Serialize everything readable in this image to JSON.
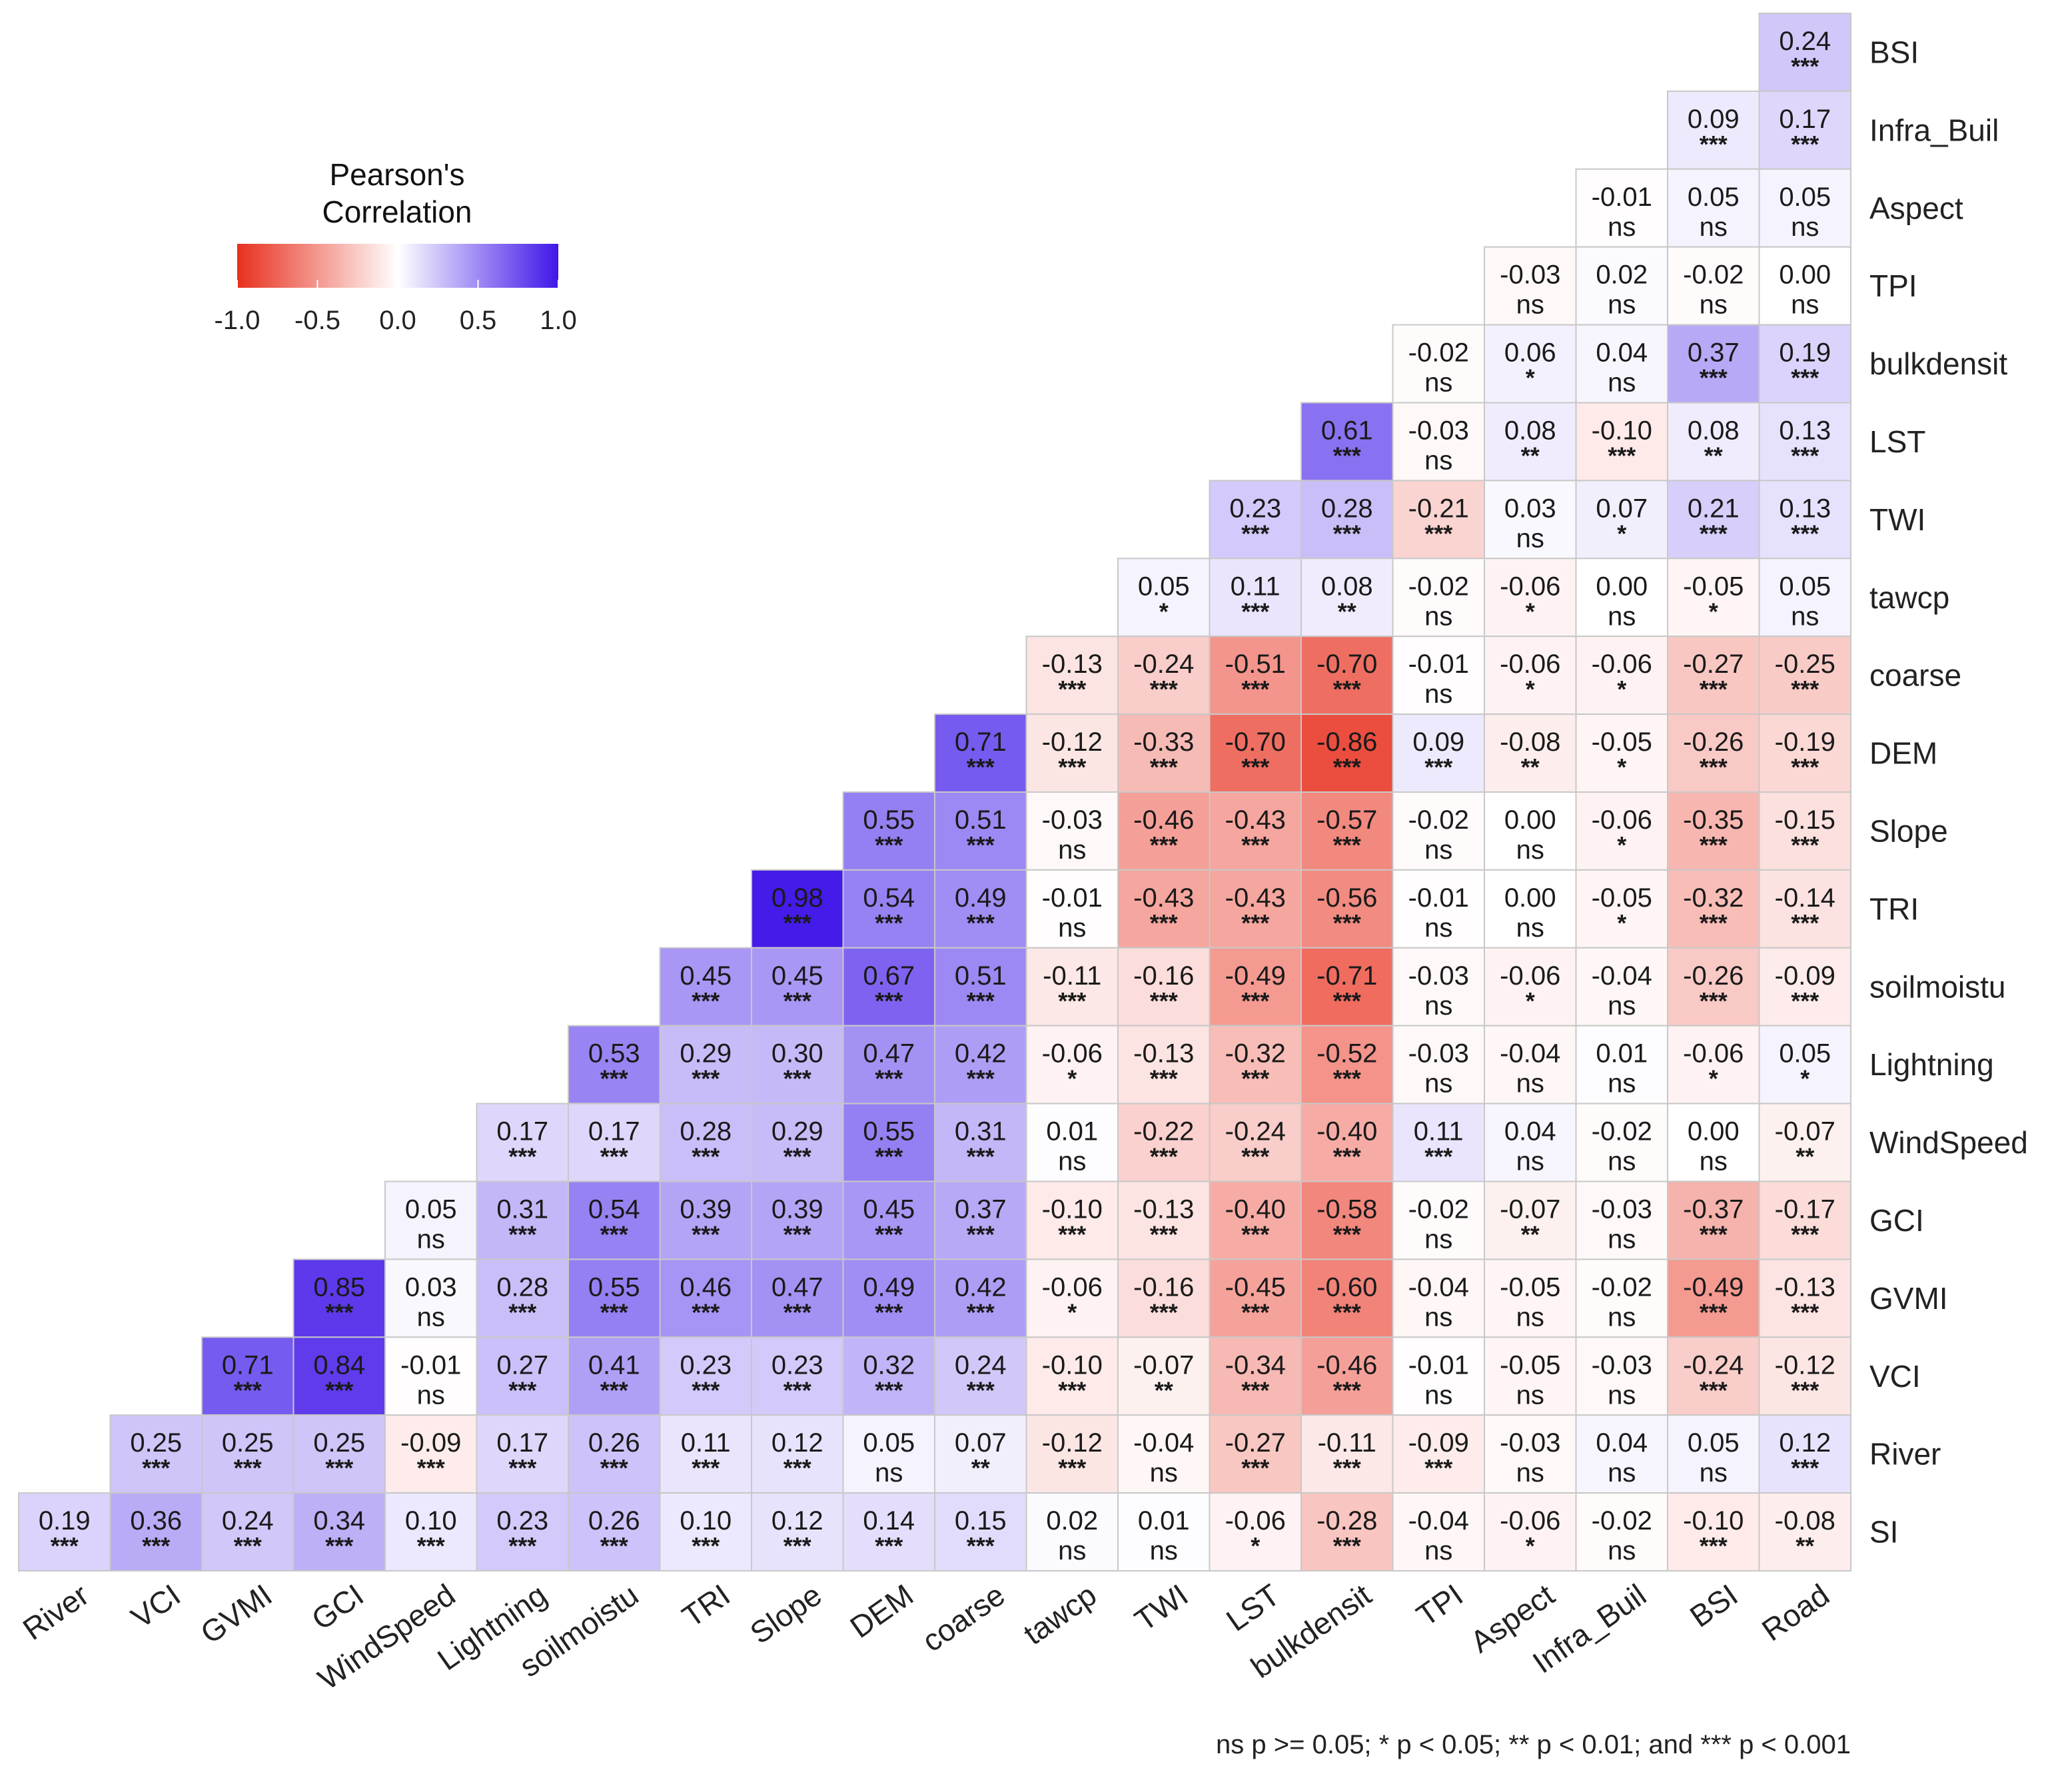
{
  "chart_data": {
    "type": "heatmap",
    "title": "",
    "legend": {
      "title_line1": "Pearson's",
      "title_line2": "Correlation",
      "ticks": [
        "-1.0",
        "-0.5",
        "0.0",
        "0.5",
        "1.0"
      ],
      "colors": {
        "low": "#e8301e",
        "mid": "#ffffff",
        "high": "#4016e8"
      },
      "placement": "top-left"
    },
    "footnote": "ns p >= 0.05; * p < 0.05; ** p < 0.01; and *** p < 0.001",
    "x_labels": [
      "River",
      "VCI",
      "GVMI",
      "GCI",
      "WindSpeed",
      "Lightning",
      "soilmoistu",
      "TRI",
      "Slope",
      "DEM",
      "coarse",
      "tawcp",
      "TWI",
      "LST",
      "bulkdensit",
      "TPI",
      "Aspect",
      "Infra_Buil",
      "BSI",
      "Road"
    ],
    "y_labels": [
      "BSI",
      "Infra_Buil",
      "Aspect",
      "TPI",
      "bulkdensit",
      "LST",
      "TWI",
      "tawcp",
      "coarse",
      "DEM",
      "Slope",
      "TRI",
      "soilmoistu",
      "Lightning",
      "WindSpeed",
      "GCI",
      "GVMI",
      "VCI",
      "River",
      "SI"
    ],
    "rows": [
      {
        "label": "BSI",
        "values": [
          "0.24"
        ],
        "sig": [
          "***"
        ]
      },
      {
        "label": "Infra_Buil",
        "values": [
          "0.09",
          "0.17"
        ],
        "sig": [
          "***",
          "***"
        ]
      },
      {
        "label": "Aspect",
        "values": [
          "-0.01",
          "0.05",
          "0.05"
        ],
        "sig": [
          "ns",
          "ns",
          "ns"
        ]
      },
      {
        "label": "TPI",
        "values": [
          "-0.03",
          "0.02",
          "-0.02",
          "0.00"
        ],
        "sig": [
          "ns",
          "ns",
          "ns",
          "ns"
        ]
      },
      {
        "label": "bulkdensit",
        "values": [
          "-0.02",
          "0.06",
          "0.04",
          "0.37",
          "0.19"
        ],
        "sig": [
          "ns",
          "*",
          "ns",
          "***",
          "***"
        ]
      },
      {
        "label": "LST",
        "values": [
          "0.61",
          "-0.03",
          "0.08",
          "-0.10",
          "0.08",
          "0.13"
        ],
        "sig": [
          "***",
          "ns",
          "**",
          "***",
          "**",
          "***"
        ]
      },
      {
        "label": "TWI",
        "values": [
          "0.23",
          "0.28",
          "-0.21",
          "0.03",
          "0.07",
          "0.21",
          "0.13"
        ],
        "sig": [
          "***",
          "***",
          "***",
          "ns",
          "*",
          "***",
          "***"
        ]
      },
      {
        "label": "tawcp",
        "values": [
          "0.05",
          "0.11",
          "0.08",
          "-0.02",
          "-0.06",
          "0.00",
          "-0.05",
          "0.05"
        ],
        "sig": [
          "*",
          "***",
          "**",
          "ns",
          "*",
          "ns",
          "*",
          "ns"
        ]
      },
      {
        "label": "coarse",
        "values": [
          "-0.13",
          "-0.24",
          "-0.51",
          "-0.70",
          "-0.01",
          "-0.06",
          "-0.06",
          "-0.27",
          "-0.25"
        ],
        "sig": [
          "***",
          "***",
          "***",
          "***",
          "ns",
          "*",
          "*",
          "***",
          "***"
        ]
      },
      {
        "label": "DEM",
        "values": [
          "0.71",
          "-0.12",
          "-0.33",
          "-0.70",
          "-0.86",
          "0.09",
          "-0.08",
          "-0.05",
          "-0.26",
          "-0.19"
        ],
        "sig": [
          "***",
          "***",
          "***",
          "***",
          "***",
          "***",
          "**",
          "*",
          "***",
          "***"
        ]
      },
      {
        "label": "Slope",
        "values": [
          "0.55",
          "0.51",
          "-0.03",
          "-0.46",
          "-0.43",
          "-0.57",
          "-0.02",
          "0.00",
          "-0.06",
          "-0.35",
          "-0.15"
        ],
        "sig": [
          "***",
          "***",
          "ns",
          "***",
          "***",
          "***",
          "ns",
          "ns",
          "*",
          "***",
          "***"
        ]
      },
      {
        "label": "TRI",
        "values": [
          "0.98",
          "0.54",
          "0.49",
          "-0.01",
          "-0.43",
          "-0.43",
          "-0.56",
          "-0.01",
          "0.00",
          "-0.05",
          "-0.32",
          "-0.14"
        ],
        "sig": [
          "***",
          "***",
          "***",
          "ns",
          "***",
          "***",
          "***",
          "ns",
          "ns",
          "*",
          "***",
          "***"
        ]
      },
      {
        "label": "soilmoistu",
        "values": [
          "0.45",
          "0.45",
          "0.67",
          "0.51",
          "-0.11",
          "-0.16",
          "-0.49",
          "-0.71",
          "-0.03",
          "-0.06",
          "-0.04",
          "-0.26",
          "-0.09"
        ],
        "sig": [
          "***",
          "***",
          "***",
          "***",
          "***",
          "***",
          "***",
          "***",
          "ns",
          "*",
          "ns",
          "***",
          "***"
        ]
      },
      {
        "label": "Lightning",
        "values": [
          "0.53",
          "0.29",
          "0.30",
          "0.47",
          "0.42",
          "-0.06",
          "-0.13",
          "-0.32",
          "-0.52",
          "-0.03",
          "-0.04",
          "0.01",
          "-0.06",
          "0.05"
        ],
        "sig": [
          "***",
          "***",
          "***",
          "***",
          "***",
          "*",
          "***",
          "***",
          "***",
          "ns",
          "ns",
          "ns",
          "*",
          "*"
        ]
      },
      {
        "label": "WindSpeed",
        "values": [
          "0.17",
          "0.17",
          "0.28",
          "0.29",
          "0.55",
          "0.31",
          "0.01",
          "-0.22",
          "-0.24",
          "-0.40",
          "0.11",
          "0.04",
          "-0.02",
          "0.00",
          "-0.07"
        ],
        "sig": [
          "***",
          "***",
          "***",
          "***",
          "***",
          "***",
          "ns",
          "***",
          "***",
          "***",
          "***",
          "ns",
          "ns",
          "ns",
          "**"
        ]
      },
      {
        "label": "GCI",
        "values": [
          "0.05",
          "0.31",
          "0.54",
          "0.39",
          "0.39",
          "0.45",
          "0.37",
          "-0.10",
          "-0.13",
          "-0.40",
          "-0.58",
          "-0.02",
          "-0.07",
          "-0.03",
          "-0.37",
          "-0.17"
        ],
        "sig": [
          "ns",
          "***",
          "***",
          "***",
          "***",
          "***",
          "***",
          "***",
          "***",
          "***",
          "***",
          "ns",
          "**",
          "ns",
          "***",
          "***"
        ]
      },
      {
        "label": "GVMI",
        "values": [
          "0.85",
          "0.03",
          "0.28",
          "0.55",
          "0.46",
          "0.47",
          "0.49",
          "0.42",
          "-0.06",
          "-0.16",
          "-0.45",
          "-0.60",
          "-0.04",
          "-0.05",
          "-0.02",
          "-0.49",
          "-0.13"
        ],
        "sig": [
          "***",
          "ns",
          "***",
          "***",
          "***",
          "***",
          "***",
          "***",
          "*",
          "***",
          "***",
          "***",
          "ns",
          "ns",
          "ns",
          "***",
          "***"
        ]
      },
      {
        "label": "VCI",
        "values": [
          "0.71",
          "0.84",
          "-0.01",
          "0.27",
          "0.41",
          "0.23",
          "0.23",
          "0.32",
          "0.24",
          "-0.10",
          "-0.07",
          "-0.34",
          "-0.46",
          "-0.01",
          "-0.05",
          "-0.03",
          "-0.24",
          "-0.12"
        ],
        "sig": [
          "***",
          "***",
          "ns",
          "***",
          "***",
          "***",
          "***",
          "***",
          "***",
          "***",
          "**",
          "***",
          "***",
          "ns",
          "ns",
          "ns",
          "***",
          "***"
        ]
      },
      {
        "label": "River",
        "values": [
          "0.25",
          "0.25",
          "0.25",
          "-0.09",
          "0.17",
          "0.26",
          "0.11",
          "0.12",
          "0.05",
          "0.07",
          "-0.12",
          "-0.04",
          "-0.27",
          "-0.11",
          "-0.09",
          "-0.03",
          "0.04",
          "0.05",
          "0.12"
        ],
        "sig": [
          "***",
          "***",
          "***",
          "***",
          "***",
          "***",
          "***",
          "***",
          "ns",
          "**",
          "***",
          "ns",
          "***",
          "***",
          "***",
          "ns",
          "ns",
          "ns",
          "***"
        ]
      },
      {
        "label": "SI",
        "values": [
          "0.19",
          "0.36",
          "0.24",
          "0.34",
          "0.10",
          "0.23",
          "0.26",
          "0.10",
          "0.12",
          "0.14",
          "0.15",
          "0.02",
          "0.01",
          "-0.06",
          "-0.28",
          "-0.04",
          "-0.06",
          "-0.02",
          "-0.10",
          "-0.08"
        ],
        "sig": [
          "***",
          "***",
          "***",
          "***",
          "***",
          "***",
          "***",
          "***",
          "***",
          "***",
          "***",
          "ns",
          "ns",
          "*",
          "***",
          "ns",
          "*",
          "ns",
          "***",
          "**"
        ]
      }
    ]
  }
}
